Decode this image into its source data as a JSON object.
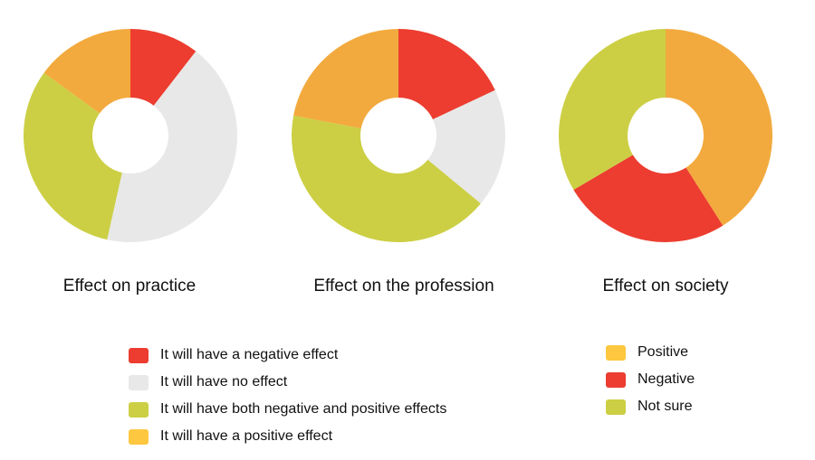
{
  "chart_data": [
    {
      "type": "pie",
      "subtype": "donut",
      "title": "Effect on practice",
      "categories": [
        "It will have a negative effect",
        "It will have no effect",
        "It will have both negative and positive effects",
        "It will have a positive effect"
      ],
      "values": [
        10.5,
        43,
        31.5,
        15
      ],
      "colors": [
        "#EC3D30",
        "#E8E8E8",
        "#CCCF44",
        "#F2AA3E"
      ],
      "unit": "%"
    },
    {
      "type": "pie",
      "subtype": "donut",
      "title": "Effect on the profession",
      "categories": [
        "It will have a negative effect",
        "It will have no effect",
        "It will have both negative and positive effects",
        "It will have a positive effect"
      ],
      "values": [
        18,
        18,
        42,
        22
      ],
      "colors": [
        "#EC3D30",
        "#E8E8E8",
        "#CCCF44",
        "#F2AA3E"
      ],
      "unit": "%"
    },
    {
      "type": "pie",
      "subtype": "donut",
      "title": "Effect on society",
      "categories": [
        "Positive",
        "Negative",
        "Not sure"
      ],
      "values": [
        41,
        25.5,
        33.5
      ],
      "colors": [
        "#F2AA3E",
        "#EC3D30",
        "#CCCF44"
      ],
      "unit": "%"
    }
  ],
  "legends": {
    "effect": [
      {
        "label": "It will have a negative effect",
        "color": "#EC3D30"
      },
      {
        "label": "It will have no effect",
        "color": "#E8E8E8"
      },
      {
        "label": "It will have both negative and positive effects",
        "color": "#CCCF44"
      },
      {
        "label": "It will have a positive effect",
        "color": "#FDC740"
      }
    ],
    "society": [
      {
        "label": "Positive",
        "color": "#FDC740"
      },
      {
        "label": "Negative",
        "color": "#EC3D30"
      },
      {
        "label": "Not sure",
        "color": "#CCCF44"
      }
    ]
  }
}
